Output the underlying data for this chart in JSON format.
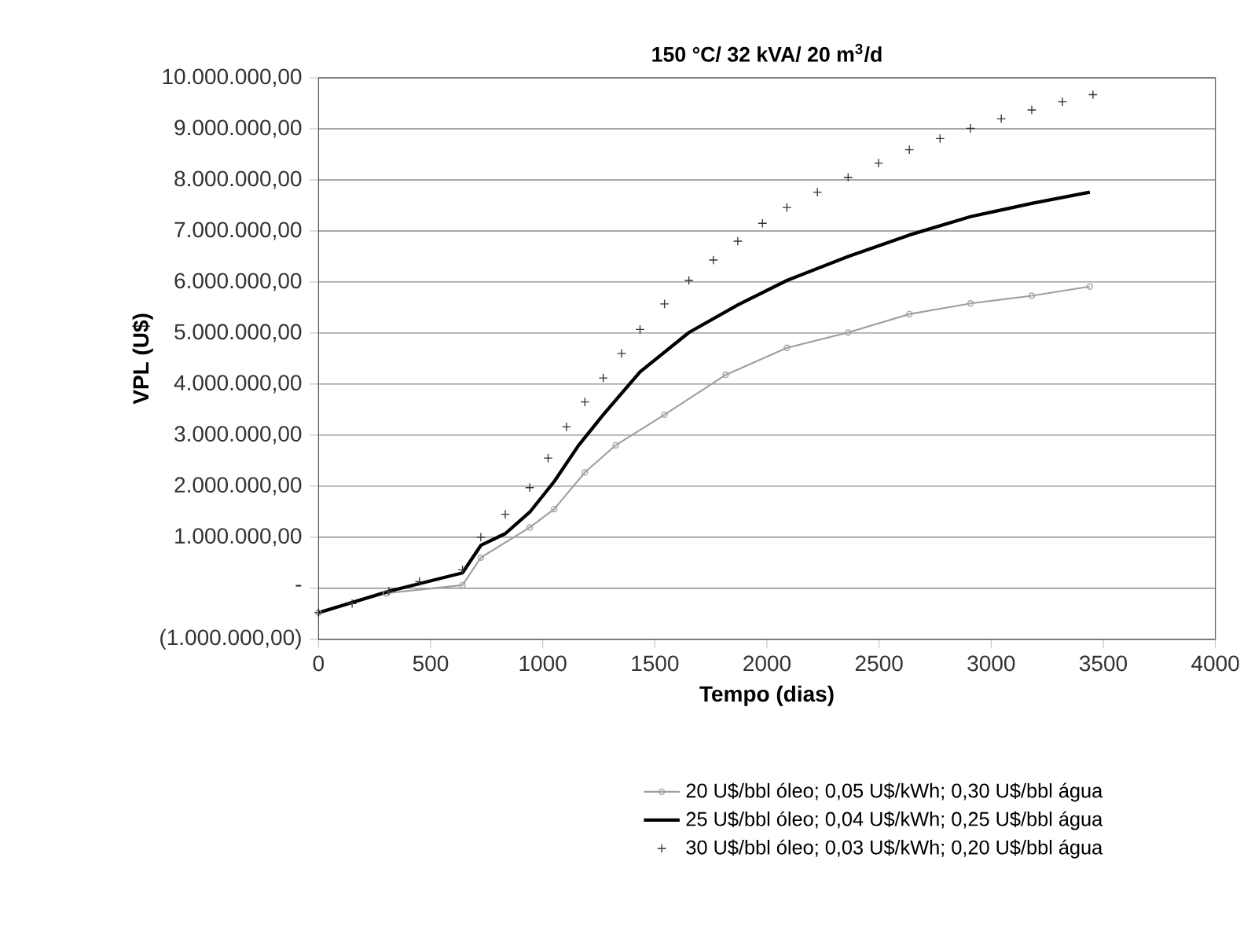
{
  "chart_data": {
    "type": "line",
    "title": "150 °C/ 32 kVA/ 20 m$^{3}$/d",
    "xlabel": "Tempo (dias)",
    "ylabel": "VPL (U$)",
    "xlim": [
      0,
      4000
    ],
    "xticks": [
      0,
      500,
      1000,
      1500,
      2000,
      2500,
      3000,
      3500,
      4000
    ],
    "ylim": [
      -1000000,
      10000000
    ],
    "yticks": [
      {
        "value": -1000000,
        "label": "(1.000.000,00)"
      },
      {
        "value": 0,
        "label": "-"
      },
      {
        "value": 1000000,
        "label": "1.000.000,00"
      },
      {
        "value": 2000000,
        "label": "2.000.000,00"
      },
      {
        "value": 3000000,
        "label": "3.000.000,00"
      },
      {
        "value": 4000000,
        "label": "4.000.000,00"
      },
      {
        "value": 5000000,
        "label": "5.000.000,00"
      },
      {
        "value": 6000000,
        "label": "6.000.000,00"
      },
      {
        "value": 7000000,
        "label": "7.000.000,00"
      },
      {
        "value": 8000000,
        "label": "8.000.000,00"
      },
      {
        "value": 9000000,
        "label": "9.000.000,00"
      },
      {
        "value": 10000000,
        "label": "10.000.000,00"
      }
    ],
    "grid": "y",
    "legend": "bottom",
    "series": [
      {
        "name": "20 U$/bbl óleo; 0,05 U$/kWh; 0,30 U$/bbl água",
        "color": "#a0a0a0",
        "marker": "circle",
        "line_style": "solid",
        "x": [
          0,
          300,
          642,
          724,
          942,
          1051,
          1188,
          1325,
          1543,
          1816,
          2089,
          2362,
          2635,
          2908,
          3181,
          3440
        ],
        "values": [
          -480000,
          -100000,
          60000,
          600000,
          1190000,
          1550000,
          2270000,
          2800000,
          3400000,
          4180000,
          4710000,
          5010000,
          5370000,
          5580000,
          5730000,
          5910000
        ]
      },
      {
        "name": "25 U$/bbl óleo; 0,04 U$/kWh; 0,25 U$/bbl água",
        "color": "#000000",
        "marker": "none",
        "line_style": "solid",
        "x": [
          0,
          314,
          642,
          724,
          833,
          942,
          1051,
          1160,
          1270,
          1434,
          1652,
          1870,
          2089,
          2362,
          2635,
          2908,
          3181,
          3440
        ],
        "values": [
          -480000,
          -60000,
          300000,
          840000,
          1070000,
          1490000,
          2090000,
          2800000,
          3400000,
          4240000,
          5010000,
          5550000,
          6030000,
          6500000,
          6920000,
          7280000,
          7540000,
          7760000
        ]
      },
      {
        "name": "30 U$/bbl óleo; 0,03 U$/kWh; 0,20 U$/bbl água",
        "type": "scatter",
        "color": "#333333",
        "marker": "cross",
        "x": [
          0,
          150,
          314,
          450,
          642,
          724,
          833,
          942,
          1024,
          1106,
          1188,
          1270,
          1352,
          1434,
          1543,
          1652,
          1761,
          1870,
          1980,
          2089,
          2225,
          2362,
          2498,
          2635,
          2772,
          2908,
          3045,
          3181,
          3318,
          3454
        ],
        "values": [
          -480000,
          -300000,
          -60000,
          130000,
          360000,
          1000000,
          1450000,
          1970000,
          2550000,
          3160000,
          3650000,
          4120000,
          4600000,
          5070000,
          5570000,
          6030000,
          6430000,
          6800000,
          7150000,
          7460000,
          7760000,
          8050000,
          8330000,
          8590000,
          8810000,
          9010000,
          9200000,
          9370000,
          9530000,
          9670000
        ]
      }
    ]
  }
}
